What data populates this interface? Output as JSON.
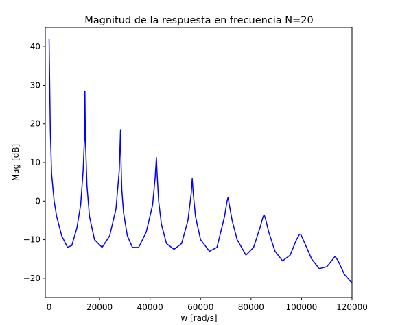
{
  "chart_data": {
    "type": "line",
    "title": "Magnitud de la respuesta en frecuencia N=20",
    "xlabel": "w [rad/s]",
    "ylabel": "Mag [dB]",
    "xlim": [
      -1500,
      120000
    ],
    "ylim": [
      -25,
      45
    ],
    "x_ticks": [
      0,
      20000,
      40000,
      60000,
      80000,
      100000,
      120000
    ],
    "x_tick_labels": [
      "0",
      "20000",
      "40000",
      "60000",
      "80000",
      "100000",
      "120000"
    ],
    "y_ticks": [
      -20,
      -10,
      0,
      10,
      20,
      30,
      40
    ],
    "y_tick_labels": [
      "−20",
      "−10",
      "0",
      "10",
      "20",
      "30",
      "40"
    ],
    "grid": false,
    "legend": "none",
    "series": [
      {
        "color": "#0000ff",
        "x": [
          0,
          500,
          1000,
          2000,
          3000,
          5000,
          7300,
          9000,
          11000,
          12500,
          13500,
          14000,
          14200,
          14400,
          15000,
          16000,
          18000,
          21000,
          24000,
          26500,
          27800,
          28300,
          28500,
          28800,
          29500,
          31000,
          33000,
          35500,
          38500,
          41000,
          42000,
          42500,
          42800,
          43400,
          44500,
          46500,
          49500,
          52500,
          55000,
          56300,
          56700,
          57100,
          58000,
          60000,
          63500,
          66500,
          69500,
          70500,
          70900,
          71400,
          72500,
          74500,
          78000,
          81000,
          83500,
          84800,
          85200,
          85700,
          87000,
          89500,
          92500,
          95500,
          98000,
          99200,
          99700,
          101000,
          104000,
          107000,
          110000,
          112500,
          113300,
          114500,
          117000,
          120000
        ],
        "y": [
          42,
          18,
          7,
          0,
          -4,
          -9,
          -12,
          -11.5,
          -7,
          -1,
          8,
          16,
          28.5,
          16,
          4,
          -4,
          -10,
          -12,
          -9,
          -2,
          8,
          18.5,
          10,
          3,
          -3,
          -9,
          -12,
          -12,
          -8,
          -1,
          6,
          11.3,
          7,
          0,
          -6,
          -11,
          -12.5,
          -11,
          -5,
          2,
          5.8,
          2,
          -4,
          -10,
          -13,
          -12,
          -4,
          0,
          1,
          -1,
          -5,
          -10,
          -14,
          -12,
          -7,
          -4,
          -3.6,
          -4.5,
          -8,
          -13,
          -15.5,
          -14,
          -10,
          -8.6,
          -8.6,
          -10.5,
          -15,
          -17.5,
          -17,
          -15,
          -14.3,
          -15.5,
          -19,
          -21.2
        ]
      }
    ]
  }
}
